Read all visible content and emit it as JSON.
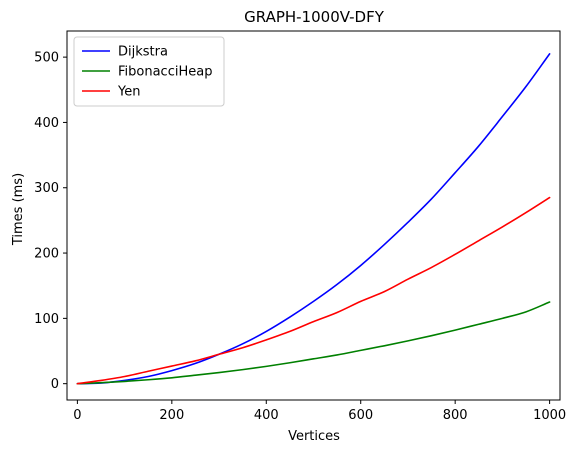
{
  "chart_data": {
    "type": "line",
    "title": "GRAPH-1000V-DFY",
    "xlabel": "Vertices",
    "ylabel": "Times (ms)",
    "xlim": [
      -22,
      1022
    ],
    "ylim": [
      -25,
      540
    ],
    "xticks": [
      0,
      200,
      400,
      600,
      800,
      1000
    ],
    "yticks": [
      0,
      100,
      200,
      300,
      400,
      500
    ],
    "grid": false,
    "legend_position": "top-left",
    "series": [
      {
        "name": "Dijkstra",
        "color": "#0000ff",
        "x": [
          0,
          50,
          100,
          150,
          200,
          250,
          300,
          350,
          400,
          450,
          500,
          550,
          600,
          650,
          700,
          750,
          800,
          850,
          900,
          950,
          1000
        ],
        "y": [
          0,
          1,
          5,
          11,
          20,
          31,
          45,
          61,
          80,
          102,
          126,
          152,
          181,
          213,
          247,
          283,
          323,
          364,
          409,
          455,
          505
        ]
      },
      {
        "name": "FibonacciHeap",
        "color": "#008000",
        "x": [
          0,
          50,
          100,
          150,
          200,
          250,
          300,
          350,
          400,
          450,
          500,
          550,
          600,
          650,
          700,
          750,
          800,
          850,
          900,
          950,
          1000
        ],
        "y": [
          0,
          1.5,
          3.5,
          6,
          9,
          13,
          17,
          21.5,
          26.5,
          32,
          38,
          44,
          51,
          58,
          65.5,
          73.5,
          82,
          91,
          100,
          110,
          125
        ]
      },
      {
        "name": "Yen",
        "color": "#ff0000",
        "x": [
          0,
          50,
          100,
          150,
          200,
          250,
          300,
          350,
          400,
          450,
          500,
          550,
          600,
          650,
          700,
          750,
          800,
          850,
          900,
          950,
          1000
        ],
        "y": [
          0,
          5,
          11,
          19,
          27,
          35,
          45,
          55,
          67,
          80,
          95,
          109,
          126,
          141,
          160,
          178,
          198,
          219,
          240,
          262,
          285
        ]
      }
    ]
  }
}
